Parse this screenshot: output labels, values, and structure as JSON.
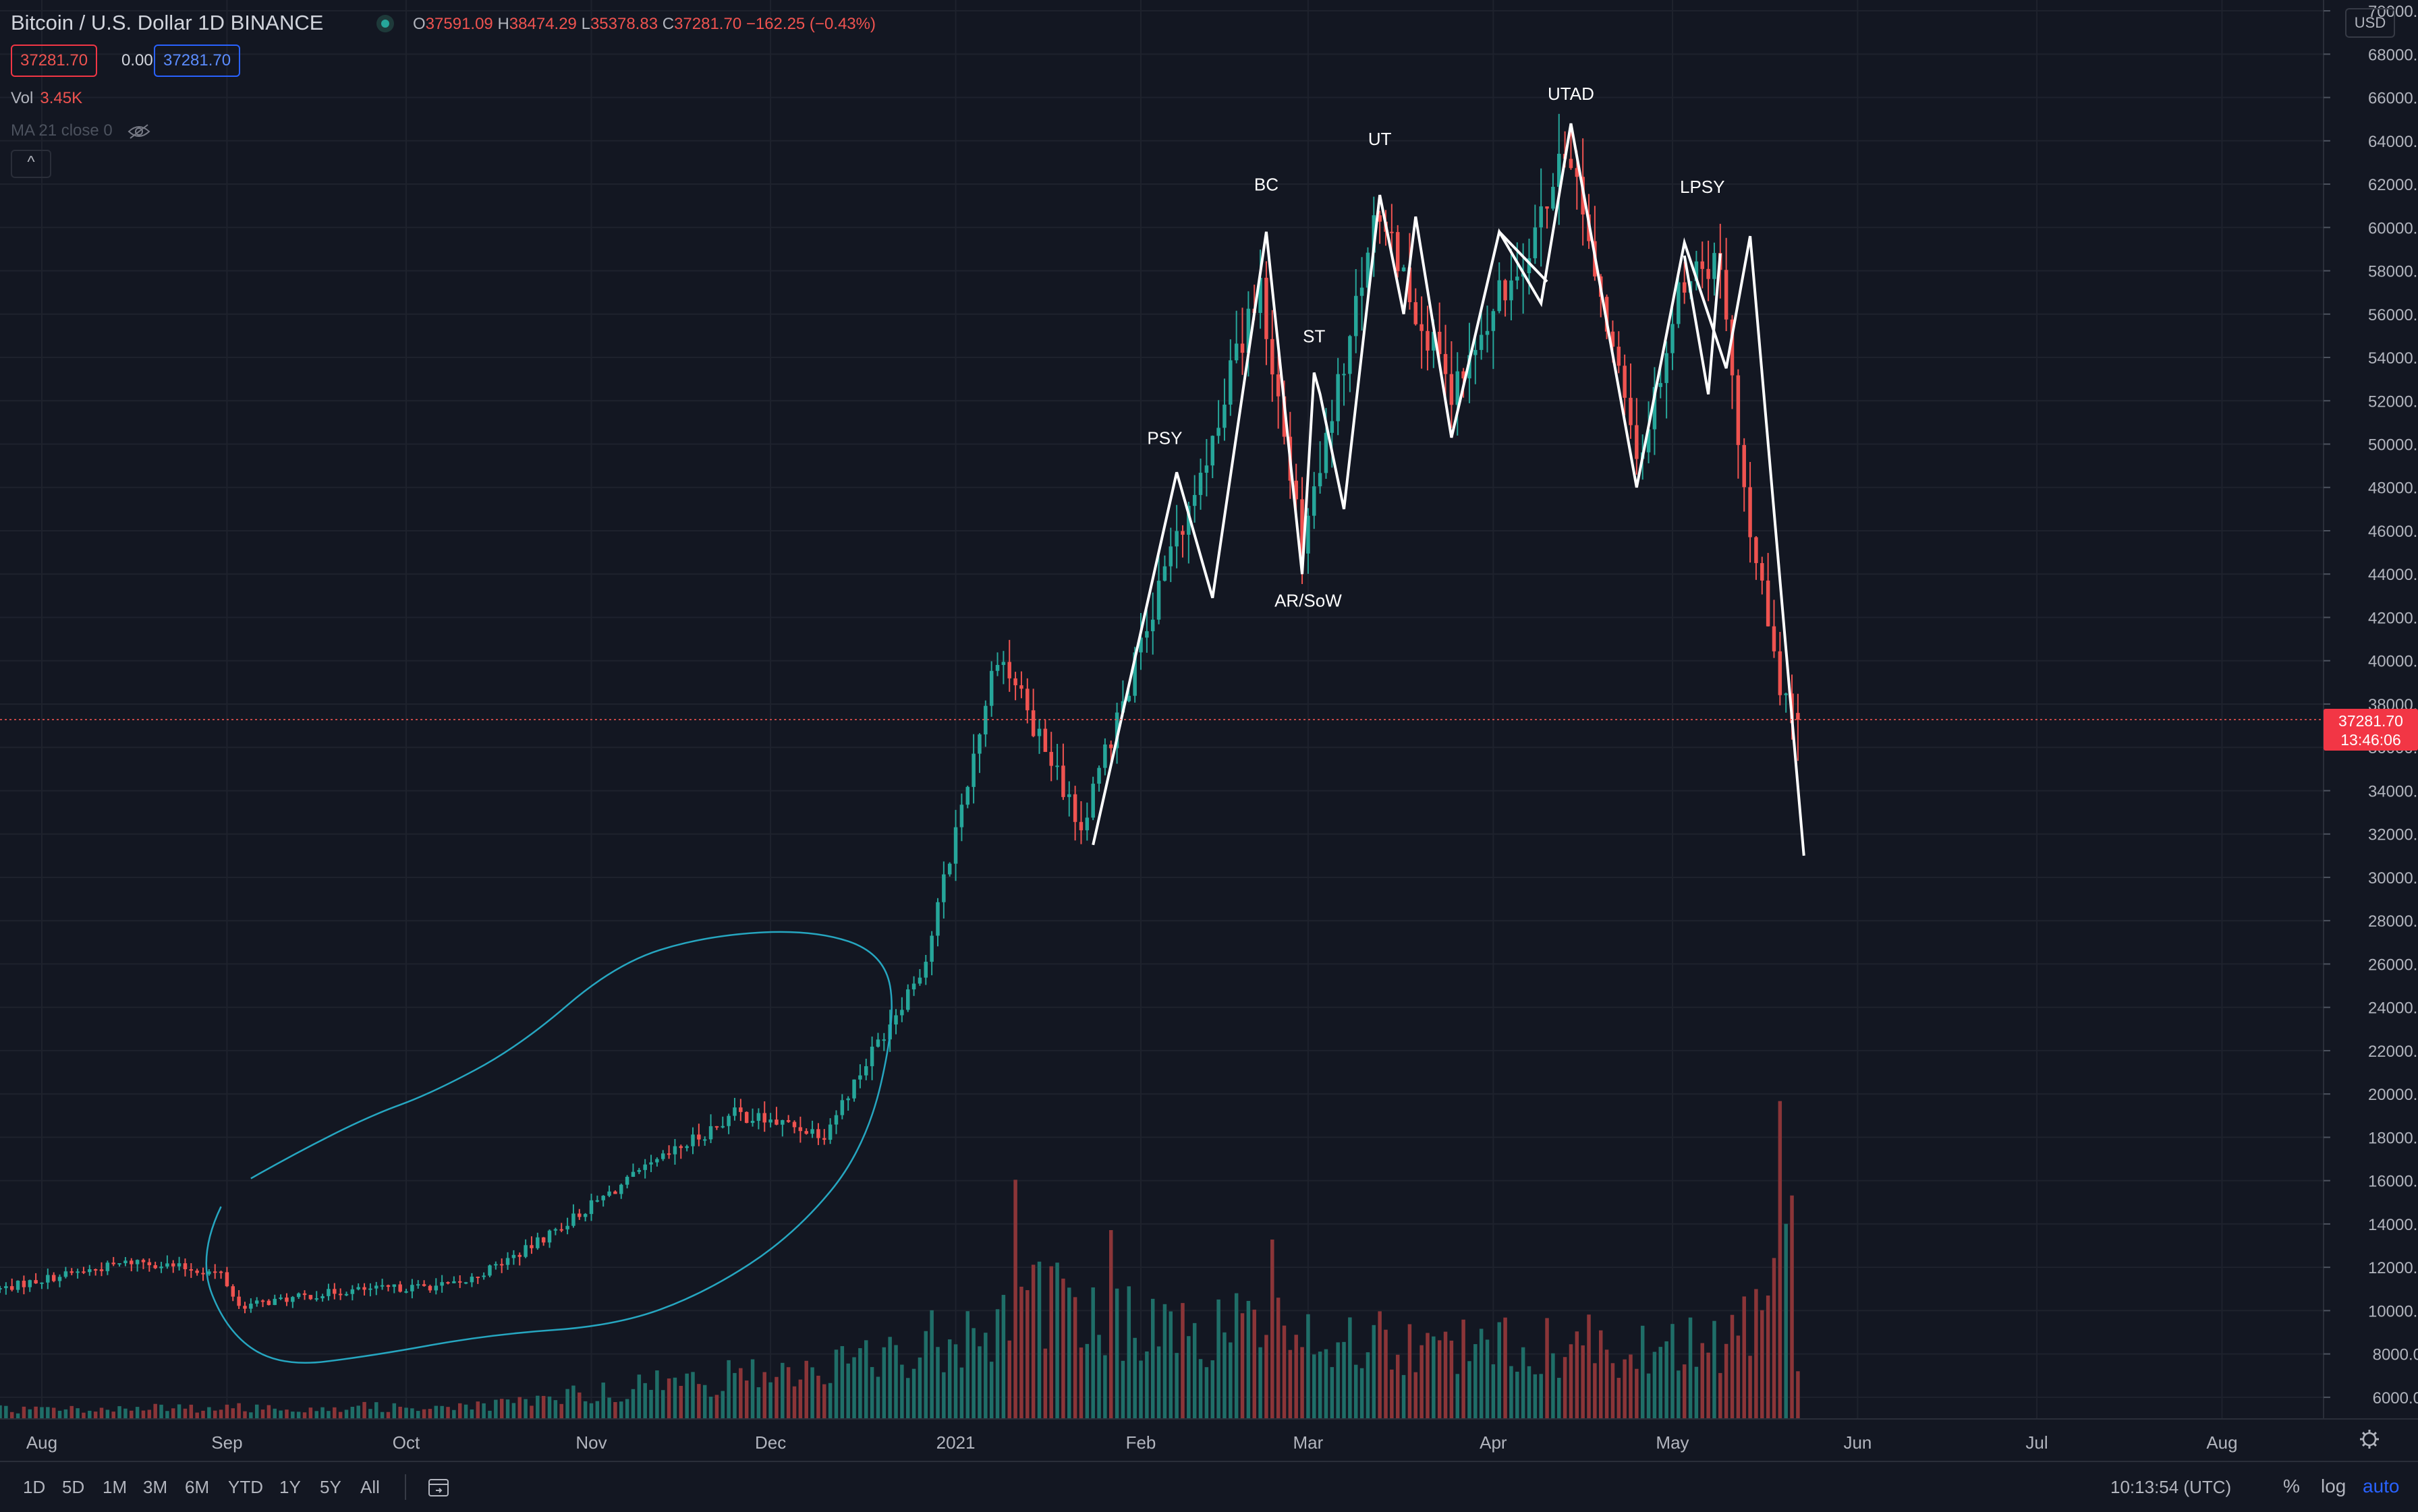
{
  "legend": {
    "title": "Bitcoin / U.S. Dollar  1D  BINANCE",
    "o_label": "O",
    "o_value": "37591.09",
    "h_label": "H",
    "h_value": "38474.29",
    "l_label": "L",
    "l_value": "35378.83",
    "c_label": "C",
    "c_value": "37281.70",
    "change": "−162.25 (−0.43%)",
    "bid": "37281.70",
    "spread": "0.00",
    "ask": "37281.70",
    "vol_label": "Vol",
    "vol_value": "3.45K",
    "ma_label": "MA 21 close 0",
    "collapse_symbol": "^"
  },
  "currency_button": "USD",
  "last_price_label": {
    "price": "37281.70",
    "countdown": "13:46:06"
  },
  "bottom_bar": {
    "timeframes": [
      "1D",
      "5D",
      "1M",
      "3M",
      "6M",
      "YTD",
      "1Y",
      "5Y",
      "All"
    ],
    "clock": "10:13:54 (UTC)",
    "percent": "%",
    "log": "log",
    "auto": "auto"
  },
  "colors": {
    "background": "#131722",
    "up": "#26a69a",
    "down": "#ef5350",
    "vol_up": "#1f6e68",
    "vol_down": "#8b3538",
    "ellipse": "#26a6c0",
    "annotation": "#ffffff",
    "price_label_bg": "#f23645"
  },
  "chart_data": {
    "type": "candlestick",
    "title": "Bitcoin / U.S. Dollar",
    "interval": "1D",
    "exchange": "BINANCE",
    "y_axis": {
      "range": [
        5000,
        70500
      ],
      "ticks": [
        6000,
        8000,
        10000,
        12000,
        14000,
        16000,
        18000,
        20000,
        22000,
        24000,
        26000,
        28000,
        30000,
        32000,
        34000,
        36000,
        38000,
        40000,
        42000,
        44000,
        46000,
        48000,
        50000,
        52000,
        54000,
        56000,
        58000,
        60000,
        62000,
        64000,
        66000,
        68000,
        70000
      ],
      "tick_format": "2 decimals",
      "scale": "linear",
      "position": "right"
    },
    "x_axis": {
      "range": [
        "2020-07-25",
        "2021-08-18"
      ],
      "ticks": [
        {
          "label": "Aug",
          "date": "2020-08-01"
        },
        {
          "label": "Sep",
          "date": "2020-09-01"
        },
        {
          "label": "Oct",
          "date": "2020-10-01"
        },
        {
          "label": "Nov",
          "date": "2020-11-01"
        },
        {
          "label": "Dec",
          "date": "2020-12-01"
        },
        {
          "label": "2021",
          "date": "2021-01-01"
        },
        {
          "label": "Feb",
          "date": "2021-02-01"
        },
        {
          "label": "Mar",
          "date": "2021-03-01"
        },
        {
          "label": "Apr",
          "date": "2021-04-01"
        },
        {
          "label": "May",
          "date": "2021-05-01"
        },
        {
          "label": "Jun",
          "date": "2021-06-01"
        },
        {
          "label": "Jul",
          "date": "2021-07-01"
        },
        {
          "label": "Aug",
          "date": "2021-08-01"
        }
      ]
    },
    "grid": true,
    "price_anchors": [
      [
        "2020-07-25",
        11000
      ],
      [
        "2020-08-02",
        11500
      ],
      [
        "2020-08-17",
        12300
      ],
      [
        "2020-08-31",
        11700
      ],
      [
        "2020-09-03",
        10200
      ],
      [
        "2020-09-20",
        10900
      ],
      [
        "2020-10-10",
        11200
      ],
      [
        "2020-10-21",
        12800
      ],
      [
        "2020-11-05",
        15600
      ],
      [
        "2020-11-25",
        19100
      ],
      [
        "2020-12-10",
        18200
      ],
      [
        "2020-12-16",
        21000
      ],
      [
        "2020-12-27",
        26200
      ],
      [
        "2021-01-08",
        40500
      ],
      [
        "2021-01-22",
        32300
      ],
      [
        "2021-02-08",
        46500
      ],
      [
        "2021-02-21",
        57500
      ],
      [
        "2021-02-28",
        45000
      ],
      [
        "2021-03-13",
        61000
      ],
      [
        "2021-03-25",
        52000
      ],
      [
        "2021-04-14",
        63500
      ],
      [
        "2021-04-25",
        49000
      ],
      [
        "2021-05-03",
        57800
      ],
      [
        "2021-05-09",
        58200
      ],
      [
        "2021-05-12",
        49500
      ],
      [
        "2021-05-19",
        38500
      ],
      [
        "2021-05-22",
        37281.7
      ]
    ],
    "last": {
      "date": "2021-05-22",
      "open": 37591.09,
      "high": 38474.29,
      "low": 35378.83,
      "close": 37281.7
    },
    "volume": {
      "anchors": [
        [
          "2020-07-25",
          0.3
        ],
        [
          "2020-10-15",
          0.4
        ],
        [
          "2020-11-08",
          1.0
        ],
        [
          "2020-12-15",
          1.7
        ],
        [
          "2021-01-05",
          2.9
        ],
        [
          "2021-01-11",
          3.8
        ],
        [
          "2021-02-10",
          2.6
        ],
        [
          "2021-02-23",
          3.0
        ],
        [
          "2021-03-20",
          2.2
        ],
        [
          "2021-04-20",
          2.3
        ],
        [
          "2021-05-12",
          2.7
        ],
        [
          "2021-05-19",
          4.4
        ],
        [
          "2021-05-22",
          2.0
        ]
      ],
      "spikes": [
        [
          "2021-01-11",
          7.6
        ],
        [
          "2021-01-27",
          6.0
        ],
        [
          "2021-02-23",
          5.7
        ],
        [
          "2021-05-19",
          10.1
        ],
        [
          "2021-05-20",
          6.2
        ],
        [
          "2021-05-21",
          7.1
        ]
      ],
      "display_range": [
        0,
        10.8
      ]
    },
    "annotations": {
      "labels": [
        {
          "text": "PSY",
          "date": "2021-02-05",
          "price": 50000
        },
        {
          "text": "BC",
          "date": "2021-02-22",
          "price": 61700
        },
        {
          "text": "ST",
          "date": "2021-03-02",
          "price": 54700
        },
        {
          "text": "AR/SoW",
          "date": "2021-03-01",
          "price": 42500
        },
        {
          "text": "UT",
          "date": "2021-03-13",
          "price": 63800
        },
        {
          "text": "UTAD",
          "date": "2021-04-14",
          "price": 65900
        },
        {
          "text": "LPSY",
          "date": "2021-05-06",
          "price": 61600
        }
      ],
      "wyckoff_path_1": [
        [
          "2021-01-24",
          31500
        ],
        [
          "2021-02-07",
          48700
        ],
        [
          "2021-02-13",
          42900
        ],
        [
          "2021-02-22",
          59800
        ],
        [
          "2021-02-28",
          44000
        ],
        [
          "2021-03-02",
          53300
        ],
        [
          "2021-03-03",
          52300
        ],
        [
          "2021-03-07",
          47000
        ],
        [
          "2021-03-13",
          61500
        ],
        [
          "2021-03-17",
          56000
        ],
        [
          "2021-03-19",
          60500
        ],
        [
          "2021-03-25",
          50300
        ],
        [
          "2021-04-02",
          59800
        ],
        [
          "2021-04-09",
          56500
        ],
        [
          "2021-04-14",
          64800
        ],
        [
          "2021-04-25",
          48000
        ],
        [
          "2021-05-03",
          59300
        ],
        [
          "2021-05-10",
          53500
        ],
        [
          "2021-05-14",
          59600
        ],
        [
          "2021-05-23",
          31000
        ]
      ],
      "wyckoff_path_2": [
        [
          "2021-04-02",
          59800
        ],
        [
          "2021-04-10",
          57500
        ]
      ],
      "wyckoff_path_3": [
        [
          "2021-05-03",
          58700
        ],
        [
          "2021-05-07",
          52300
        ],
        [
          "2021-05-09",
          58800
        ]
      ],
      "accumulation_ellipse_note": "freehand loop around Sep–Dec 2020 consolidation"
    }
  }
}
